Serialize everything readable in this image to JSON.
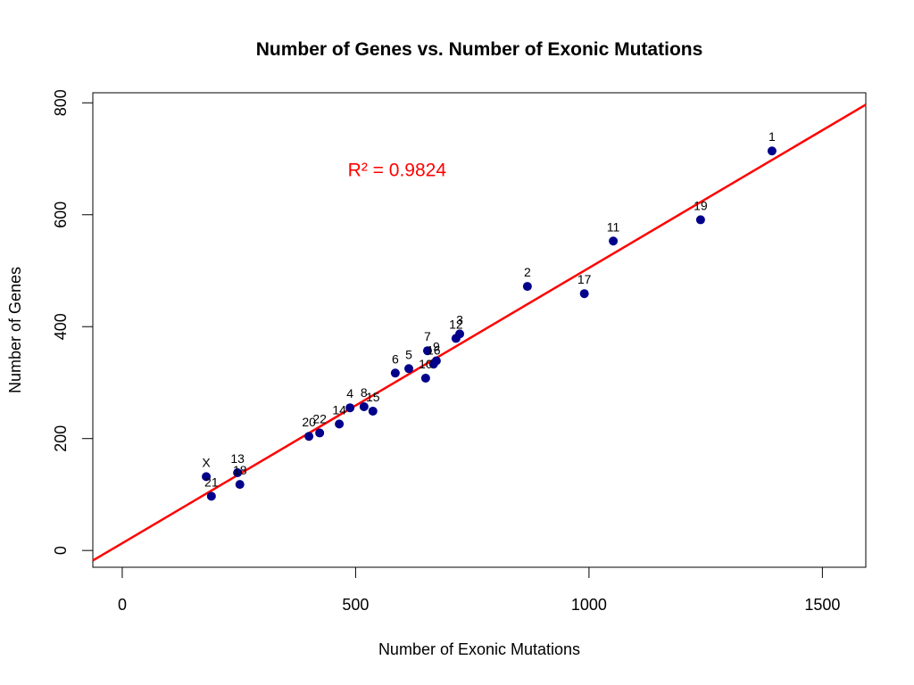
{
  "chart_data": {
    "type": "scatter",
    "title": "Number of Genes vs. Number of Exonic Mutations",
    "xlabel": "Number of Exonic Mutations",
    "ylabel": "Number of Genes",
    "xlim": [
      -63,
      1593
    ],
    "ylim": [
      -30,
      818
    ],
    "xticks": [
      0,
      500,
      1000,
      1500
    ],
    "yticks": [
      0,
      200,
      400,
      600,
      800
    ],
    "xtick_labels": [
      "0",
      "500",
      "1000",
      "1500"
    ],
    "ytick_labels": [
      "0",
      "200",
      "400",
      "600",
      "800"
    ],
    "grid": false,
    "legend": "none",
    "point_color": "#00008b",
    "fit_color": "#ff0000",
    "points": [
      {
        "label": "1",
        "x": 1392,
        "y": 714
      },
      {
        "label": "2",
        "x": 868,
        "y": 472
      },
      {
        "label": "3",
        "x": 723,
        "y": 387
      },
      {
        "label": "4",
        "x": 488,
        "y": 255
      },
      {
        "label": "5",
        "x": 614,
        "y": 325
      },
      {
        "label": "6",
        "x": 585,
        "y": 317
      },
      {
        "label": "7",
        "x": 654,
        "y": 357
      },
      {
        "label": "8",
        "x": 518,
        "y": 257
      },
      {
        "label": "9",
        "x": 673,
        "y": 339
      },
      {
        "label": "10",
        "x": 650,
        "y": 308
      },
      {
        "label": "11",
        "x": 1052,
        "y": 553
      },
      {
        "label": "12",
        "x": 715,
        "y": 379
      },
      {
        "label": "13",
        "x": 247,
        "y": 139
      },
      {
        "label": "14",
        "x": 465,
        "y": 226
      },
      {
        "label": "15",
        "x": 537,
        "y": 249
      },
      {
        "label": "16",
        "x": 667,
        "y": 333
      },
      {
        "label": "17",
        "x": 990,
        "y": 459
      },
      {
        "label": "18",
        "x": 252,
        "y": 118
      },
      {
        "label": "19",
        "x": 1239,
        "y": 591
      },
      {
        "label": "20",
        "x": 400,
        "y": 204
      },
      {
        "label": "21",
        "x": 191,
        "y": 97
      },
      {
        "label": "22",
        "x": 423,
        "y": 210
      },
      {
        "label": "X",
        "x": 180,
        "y": 132
      }
    ],
    "fit_line": {
      "intercept": 13,
      "slope": 0.492
    },
    "annotation": {
      "text": "R² = 0.9824",
      "x": 780,
      "y": 680
    }
  }
}
